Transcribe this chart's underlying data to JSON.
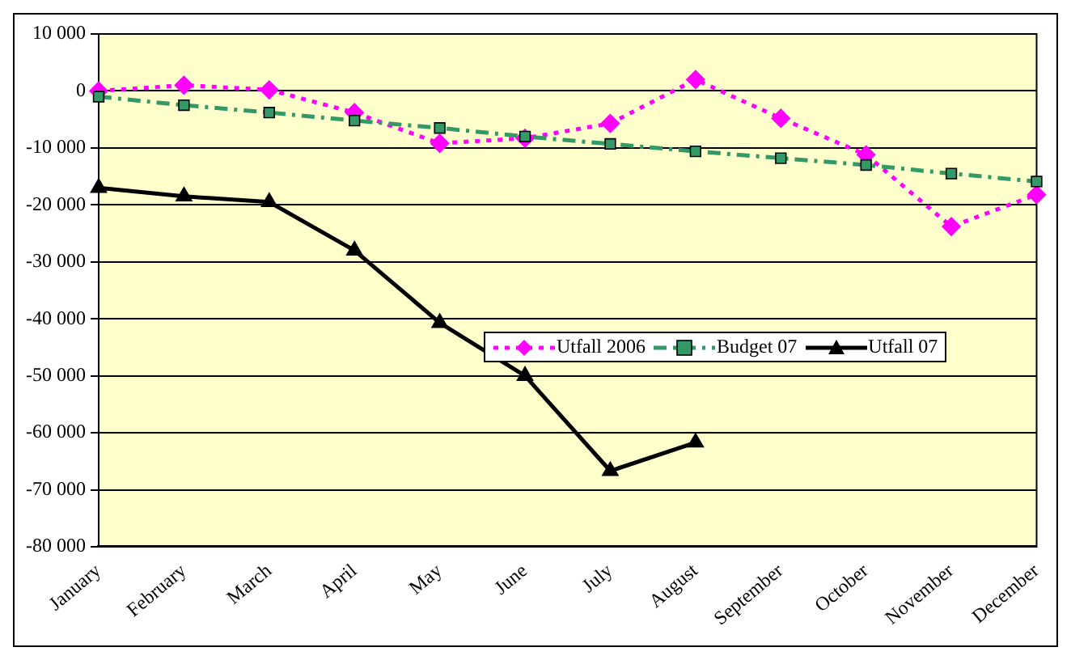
{
  "chart_data": {
    "type": "line",
    "categories": [
      "January",
      "February",
      "March",
      "April",
      "May",
      "June",
      "July",
      "August",
      "September",
      "October",
      "November",
      "December"
    ],
    "series": [
      {
        "name": "Utfall 2006",
        "color": "#ff00ff",
        "marker": "diamond",
        "line_style": "dotted",
        "values": [
          0,
          1000,
          200,
          -3800,
          -9200,
          -8300,
          -5700,
          2000,
          -4800,
          -11200,
          -23800,
          -18200
        ]
      },
      {
        "name": "Budget 07",
        "color": "#339966",
        "marker": "square",
        "line_style": "dashed",
        "values": [
          -1000,
          -2500,
          -3800,
          -5200,
          -6500,
          -8000,
          -9300,
          -10600,
          -11800,
          -13000,
          -14500,
          -15900
        ]
      },
      {
        "name": "Utfall 07",
        "color": "#000000",
        "marker": "triangle",
        "line_style": "solid",
        "values": [
          -17000,
          -18500,
          -19500,
          -28000,
          -40700,
          -50000,
          -66700,
          -61700,
          null,
          null,
          null,
          null
        ]
      }
    ],
    "ylim": [
      -80000,
      10000
    ],
    "yticks": [
      {
        "value": 10000,
        "label": "10 000"
      },
      0,
      {
        "value": -10000,
        "label": "-10 000"
      },
      {
        "value": -20000,
        "label": "-20 000"
      },
      {
        "value": -30000,
        "label": "-30 000"
      },
      {
        "value": -40000,
        "label": "-40 000"
      },
      {
        "value": -50000,
        "label": "-50 000"
      },
      {
        "value": -60000,
        "label": "-60 000"
      },
      {
        "value": -70000,
        "label": "-70 000"
      },
      {
        "value": -80000,
        "label": "-80 000"
      }
    ],
    "grid": "y",
    "legend": "center"
  }
}
